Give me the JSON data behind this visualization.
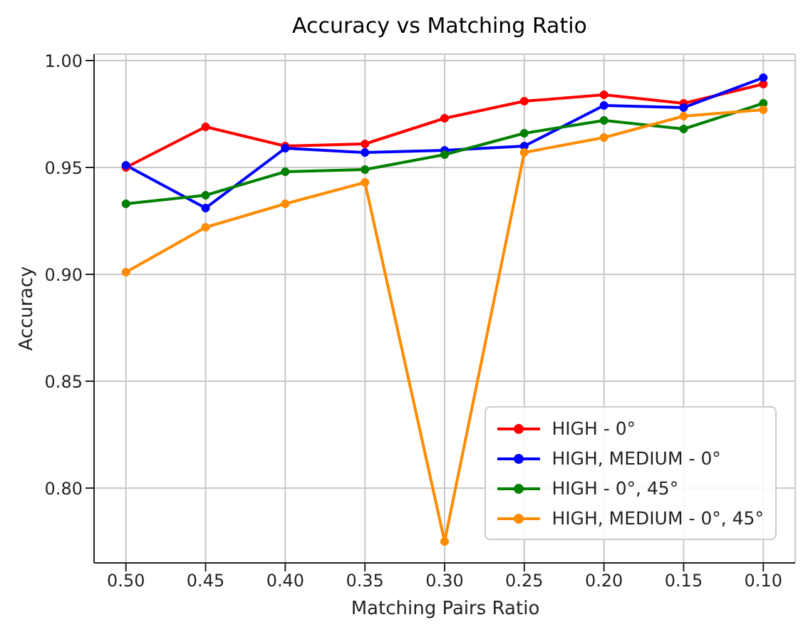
{
  "chart_data": {
    "type": "line",
    "title": "Accuracy vs Matching Ratio",
    "xlabel": "Matching Pairs Ratio",
    "ylabel": "Accuracy",
    "x": [
      0.5,
      0.45,
      0.4,
      0.35,
      0.3,
      0.25,
      0.2,
      0.15,
      0.1
    ],
    "xlim": [
      0.52,
      0.08
    ],
    "xticks": [
      {
        "value": 0.5,
        "label": "0.50"
      },
      {
        "value": 0.45,
        "label": "0.45"
      },
      {
        "value": 0.4,
        "label": "0.40"
      },
      {
        "value": 0.35,
        "label": "0.35"
      },
      {
        "value": 0.3,
        "label": "0.30"
      },
      {
        "value": 0.25,
        "label": "0.25"
      },
      {
        "value": 0.2,
        "label": "0.20"
      },
      {
        "value": 0.15,
        "label": "0.15"
      },
      {
        "value": 0.1,
        "label": "0.10"
      }
    ],
    "ylim": [
      0.765,
      1.003
    ],
    "yticks": [
      {
        "value": 0.8,
        "label": "0.80"
      },
      {
        "value": 0.85,
        "label": "0.85"
      },
      {
        "value": 0.9,
        "label": "0.90"
      },
      {
        "value": 0.95,
        "label": "0.95"
      },
      {
        "value": 1.0,
        "label": "1.00"
      }
    ],
    "series": [
      {
        "name": "HIGH - 0°",
        "color": "#ff0000",
        "values": [
          0.95,
          0.969,
          0.96,
          0.961,
          0.973,
          0.981,
          0.984,
          0.98,
          0.989
        ]
      },
      {
        "name": "HIGH, MEDIUM - 0°",
        "color": "#0000ff",
        "values": [
          0.951,
          0.931,
          0.959,
          0.957,
          0.958,
          0.96,
          0.979,
          0.978,
          0.992
        ]
      },
      {
        "name": "HIGH - 0°, 45°",
        "color": "#008000",
        "values": [
          0.933,
          0.937,
          0.948,
          0.949,
          0.956,
          0.966,
          0.972,
          0.968,
          0.98
        ]
      },
      {
        "name": "HIGH, MEDIUM - 0°, 45°",
        "color": "#ff8c00",
        "values": [
          0.901,
          0.922,
          0.933,
          0.943,
          0.775,
          0.957,
          0.964,
          0.974,
          0.977
        ]
      }
    ],
    "grid": true,
    "legend": "bottom right",
    "marker": "circle",
    "line_style": "solid"
  }
}
